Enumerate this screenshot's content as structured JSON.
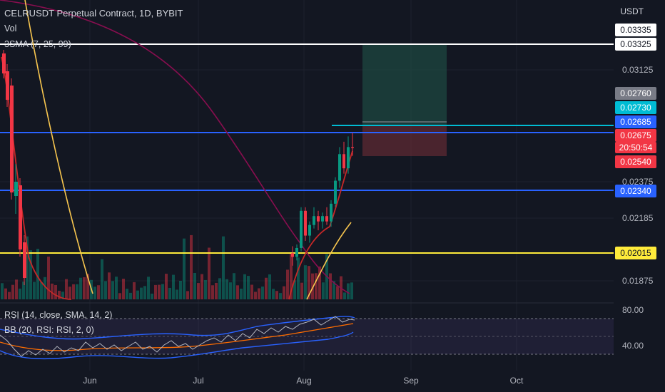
{
  "header": {
    "title": "CELRUSDT Perpetual Contract, 1D, BYBIT",
    "vol_label": "Vol",
    "sma_label": "3SMA (7, 25, 99)"
  },
  "price_axis": {
    "currency": "USDT",
    "ticks": [
      "0.03125",
      "0.02375",
      "0.02185",
      "0.01875"
    ],
    "rsi_ticks": [
      "80.00",
      "40.00"
    ]
  },
  "price_tags": [
    {
      "label": "0.03335",
      "bg": "#ffffff",
      "fg": "#131722"
    },
    {
      "label": "0.03325",
      "bg": "#ffffff",
      "fg": "#131722"
    },
    {
      "label": "0.02760",
      "bg": "#787b86",
      "fg": "#ffffff"
    },
    {
      "label": "0.02730",
      "bg": "#00bcd4",
      "fg": "#ffffff"
    },
    {
      "label": "0.02685",
      "bg": "#2962ff",
      "fg": "#ffffff"
    },
    {
      "label": "0.02675",
      "bg": "#f23645",
      "fg": "#ffffff"
    },
    {
      "label": "20:50:54",
      "bg": "#f23645",
      "fg": "#ffffff"
    },
    {
      "label": "0.02540",
      "bg": "#f23645",
      "fg": "#ffffff"
    },
    {
      "label": "0.02340",
      "bg": "#2962ff",
      "fg": "#ffffff"
    },
    {
      "label": "0.02015",
      "bg": "#ffeb3b",
      "fg": "#131722"
    }
  ],
  "time_axis": [
    "Jun",
    "Jul",
    "Aug",
    "Sep",
    "Oct"
  ],
  "indicators": {
    "rsi_label": "RSI (14, close, SMA, 14, 2)",
    "bb_label": "BB (20, RSI: RSI, 2, 0)"
  },
  "chart_data": {
    "type": "candlestick",
    "symbol": "CELRUSDT",
    "timeframe": "1D",
    "y_range": [
      0.0182,
      0.0343
    ],
    "horizontal_lines": [
      {
        "value": 0.03325,
        "color": "#ffffff"
      },
      {
        "value": 0.02685,
        "color": "#2962ff"
      },
      {
        "value": 0.0273,
        "color": "#00bcd4"
      },
      {
        "value": 0.0234,
        "color": "#2962ff"
      },
      {
        "value": 0.02015,
        "color": "#ffeb3b"
      }
    ],
    "position": {
      "entry": 0.0273,
      "target": 0.03325,
      "stop": 0.0254
    },
    "recent_candles": [
      {
        "o": 0.0208,
        "h": 0.0212,
        "l": 0.0201,
        "c": 0.0206
      },
      {
        "o": 0.0206,
        "h": 0.0213,
        "l": 0.0204,
        "c": 0.0211
      },
      {
        "o": 0.0211,
        "h": 0.0234,
        "l": 0.0209,
        "c": 0.0232
      },
      {
        "o": 0.0232,
        "h": 0.0234,
        "l": 0.0215,
        "c": 0.0218
      },
      {
        "o": 0.0218,
        "h": 0.0226,
        "l": 0.0214,
        "c": 0.0224
      },
      {
        "o": 0.0224,
        "h": 0.0234,
        "l": 0.0222,
        "c": 0.0229
      },
      {
        "o": 0.0229,
        "h": 0.0232,
        "l": 0.0221,
        "c": 0.0226
      },
      {
        "o": 0.0226,
        "h": 0.0231,
        "l": 0.0222,
        "c": 0.0229
      },
      {
        "o": 0.0229,
        "h": 0.0234,
        "l": 0.0224,
        "c": 0.0226
      },
      {
        "o": 0.0226,
        "h": 0.0238,
        "l": 0.0223,
        "c": 0.0236
      },
      {
        "o": 0.0236,
        "h": 0.0251,
        "l": 0.0234,
        "c": 0.0249
      },
      {
        "o": 0.0249,
        "h": 0.0268,
        "l": 0.0245,
        "c": 0.0264
      },
      {
        "o": 0.0264,
        "h": 0.0271,
        "l": 0.0253,
        "c": 0.0256
      },
      {
        "o": 0.0256,
        "h": 0.0274,
        "l": 0.0253,
        "c": 0.0268
      },
      {
        "o": 0.0268,
        "h": 0.0276,
        "l": 0.0263,
        "c": 0.02675
      }
    ]
  }
}
